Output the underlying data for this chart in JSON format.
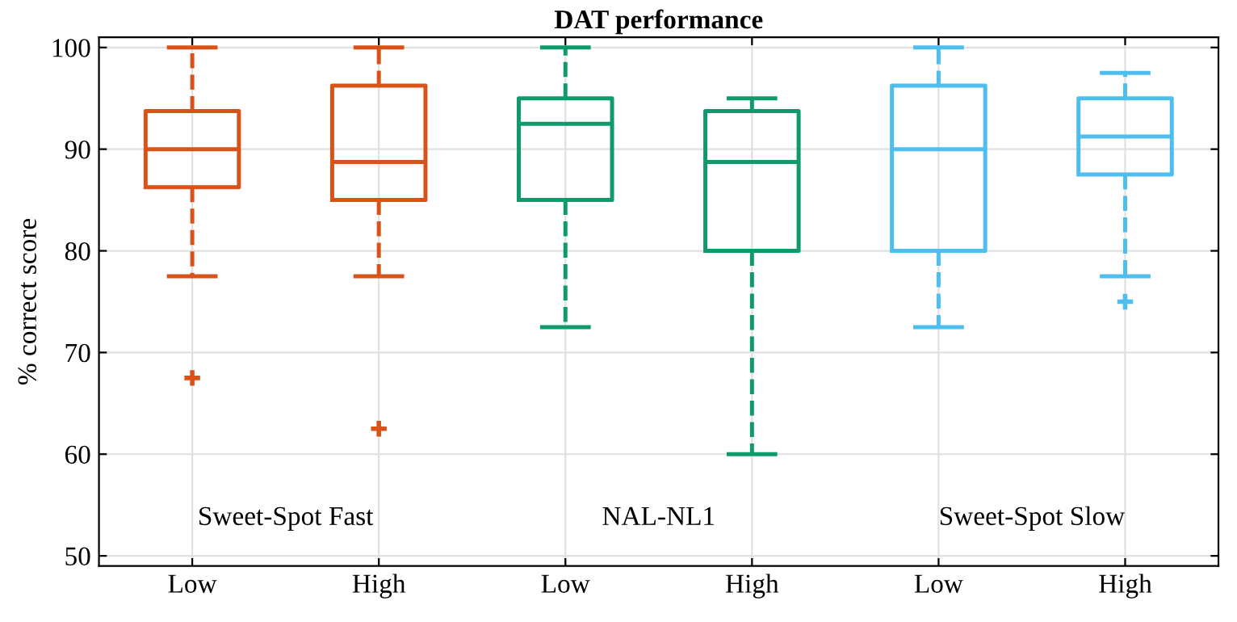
{
  "chart_data": {
    "type": "box",
    "title": "DAT performance",
    "ylabel": "% correct score",
    "categories": [
      "Low",
      "High",
      "Low",
      "High",
      "Low",
      "High"
    ],
    "boxes": [
      {
        "low": 77.5,
        "q1": 86.25,
        "median": 90,
        "q3": 93.75,
        "high": 100,
        "outliers": [
          67.5
        ]
      },
      {
        "low": 77.5,
        "q1": 85,
        "median": 88.75,
        "q3": 96.25,
        "high": 100,
        "outliers": [
          62.5
        ]
      },
      {
        "low": 72.5,
        "q1": 85,
        "median": 92.5,
        "q3": 95,
        "high": 100
      },
      {
        "low": 60,
        "q1": 80,
        "median": 88.75,
        "q3": 93.75,
        "high": 95
      },
      {
        "low": 72.5,
        "q1": 80,
        "median": 90,
        "q3": 96.25,
        "high": 100
      },
      {
        "low": 77.5,
        "q1": 87.5,
        "median": 91.25,
        "q3": 95,
        "high": 97.5,
        "outliers": [
          75
        ]
      }
    ],
    "colors": [
      "#d95319",
      "#d95319",
      "#0f9a6e",
      "#0f9a6e",
      "#4dbeee",
      "#4dbeee"
    ],
    "annotations": [
      "Sweet-Spot Fast",
      "NAL-NL1",
      "Sweet-Spot Slow"
    ],
    "ylim": [
      49,
      101
    ],
    "yticks": [
      50,
      60,
      70,
      80,
      90,
      100
    ],
    "grid": true,
    "line_style": "dashed",
    "marker": "cross"
  }
}
